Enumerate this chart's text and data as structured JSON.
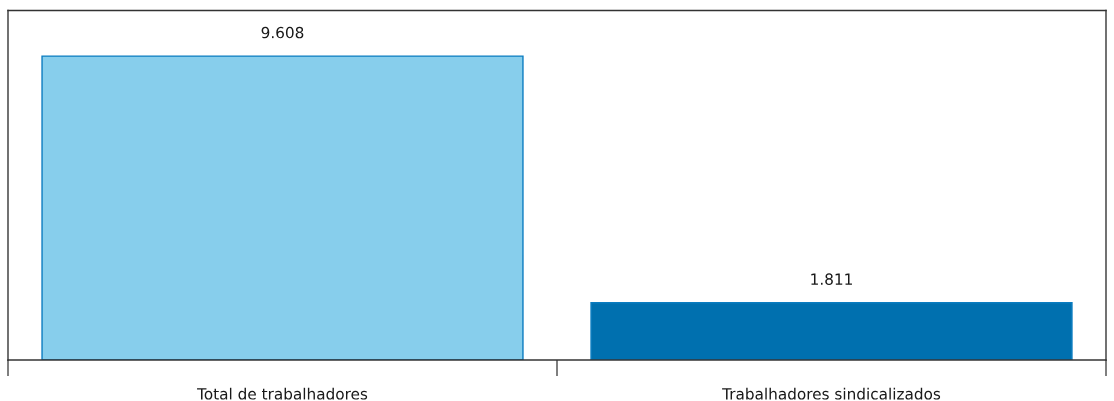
{
  "chart_data": {
    "type": "bar",
    "categories": [
      "Total de trabalhadores",
      "Trabalhadores sindicalizados"
    ],
    "values": [
      9608,
      1811
    ],
    "colors": [
      "#87ceec",
      "#0070af"
    ],
    "value_labels": [
      "9.608",
      "1.811"
    ],
    "ylim": [
      0,
      11050
    ],
    "tick_labels": "x"
  }
}
